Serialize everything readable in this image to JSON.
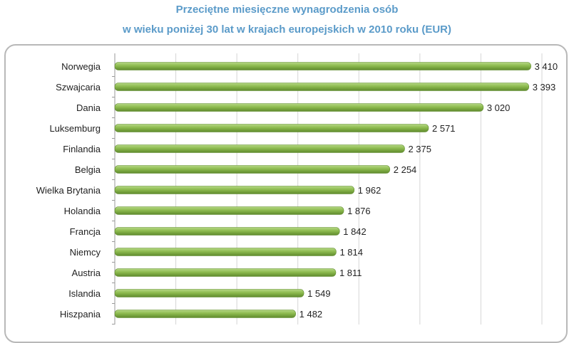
{
  "chart_data": {
    "type": "bar",
    "orientation": "horizontal",
    "title_line1": "Przeciętne miesięczne wynagrodzenia osób",
    "title_line2": "w wieku poniżej 30 lat w krajach europejskich w 2010 roku (EUR)",
    "categories": [
      "Norwegia",
      "Szwajcaria",
      "Dania",
      "Luksemburg",
      "Finlandia",
      "Belgia",
      "Wielka Brytania",
      "Holandia",
      "Francja",
      "Niemcy",
      "Austria",
      "Islandia",
      "Hiszpania"
    ],
    "values": [
      3410,
      3393,
      3020,
      2571,
      2375,
      2254,
      1962,
      1876,
      1842,
      1814,
      1811,
      1549,
      1482
    ],
    "value_labels": [
      "3 410",
      "3 393",
      "3 020",
      "2 571",
      "2 375",
      "2 254",
      "1 962",
      "1 876",
      "1 842",
      "1 814",
      "1 811",
      "1 549",
      "1 482"
    ],
    "xlim": [
      0,
      3500
    ],
    "grid": true,
    "bar_color": "#8dbb4f",
    "bar_dark": "#5e8a2c",
    "bar_light": "#b5d884"
  }
}
